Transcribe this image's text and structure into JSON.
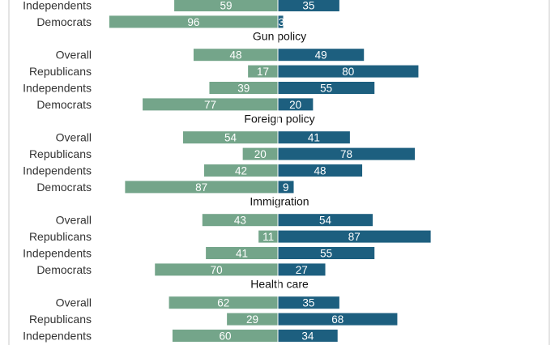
{
  "chart_data": {
    "type": "bar",
    "orientation": "horizontal-diverging",
    "colors": {
      "left": "#74a58a",
      "right": "#1d5f7f",
      "frame": "#c8c8c8",
      "center": "#ffffff"
    },
    "xlim": [
      -100,
      100
    ],
    "sections": [
      {
        "title": "",
        "rows": [
          {
            "label": "Independents",
            "left": 59,
            "right": 35
          },
          {
            "label": "Democrats",
            "left": 96,
            "right": 3
          }
        ]
      },
      {
        "title": "Gun policy",
        "rows": [
          {
            "label": "Overall",
            "left": 48,
            "right": 49
          },
          {
            "label": "Republicans",
            "left": 17,
            "right": 80
          },
          {
            "label": "Independents",
            "left": 39,
            "right": 55
          },
          {
            "label": "Democrats",
            "left": 77,
            "right": 20
          }
        ]
      },
      {
        "title": "Foreign policy",
        "rows": [
          {
            "label": "Overall",
            "left": 54,
            "right": 41
          },
          {
            "label": "Republicans",
            "left": 20,
            "right": 78
          },
          {
            "label": "Independents",
            "left": 42,
            "right": 48
          },
          {
            "label": "Democrats",
            "left": 87,
            "right": 9
          }
        ]
      },
      {
        "title": "Immigration",
        "rows": [
          {
            "label": "Overall",
            "left": 43,
            "right": 54
          },
          {
            "label": "Republicans",
            "left": 11,
            "right": 87
          },
          {
            "label": "Independents",
            "left": 41,
            "right": 55
          },
          {
            "label": "Democrats",
            "left": 70,
            "right": 27
          }
        ]
      },
      {
        "title": "Health care",
        "rows": [
          {
            "label": "Overall",
            "left": 62,
            "right": 35
          },
          {
            "label": "Republicans",
            "left": 29,
            "right": 68
          },
          {
            "label": "Independents",
            "left": 60,
            "right": 34
          }
        ]
      }
    ]
  }
}
